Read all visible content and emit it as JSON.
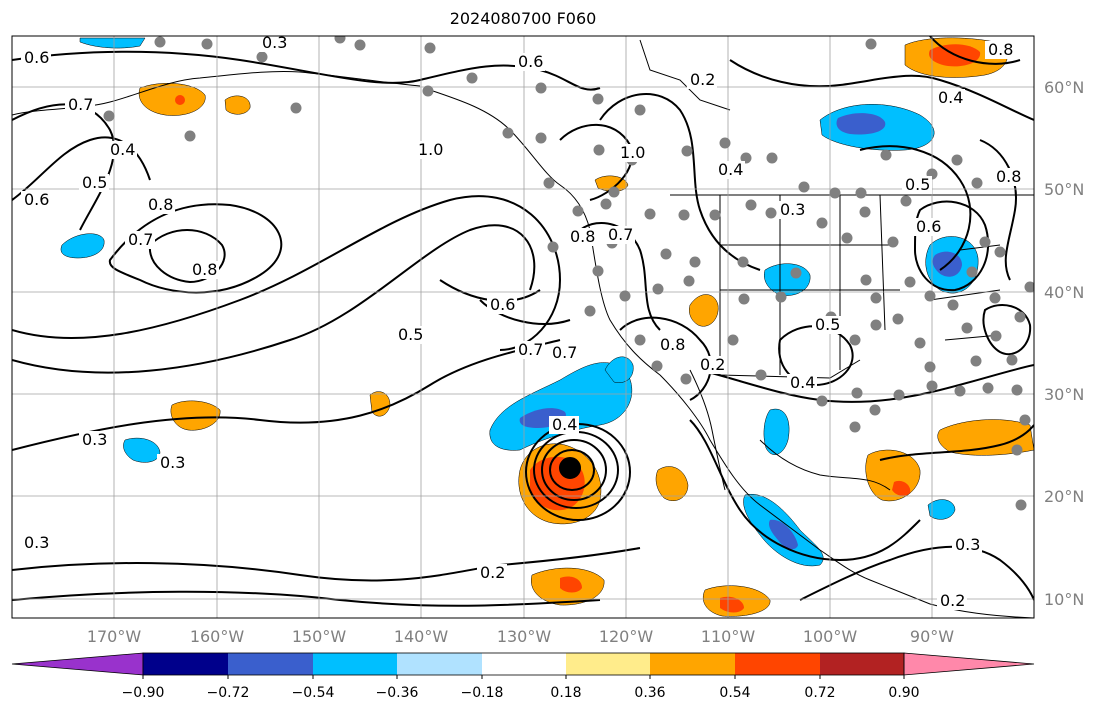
{
  "title": "2024080700 F060",
  "map": {
    "lon_ticks": [
      "170°W",
      "160°W",
      "150°W",
      "140°W",
      "130°W",
      "120°W",
      "110°W",
      "100°W",
      "90°W"
    ],
    "lat_ticks": [
      "60°N",
      "50°N",
      "40°N",
      "30°N",
      "20°N",
      "10°N"
    ],
    "contour_labels": [
      "0.6",
      "0.3",
      "0.6",
      "0.7",
      "0.4",
      "0.5",
      "0.6",
      "0.8",
      "0.7",
      "0.8",
      "1.0",
      "0.7",
      "1.0",
      "0.8",
      "0.7",
      "0.6",
      "0.7",
      "0.5",
      "0.3",
      "0.3",
      "0.3",
      "0.2",
      "0.4",
      "0.4",
      "0.2",
      "0.2",
      "0.4",
      "0.5",
      "0.6",
      "0.8",
      "0.3",
      "0.4",
      "0.5",
      "0.8",
      "0.2",
      "0.3",
      "0.8"
    ],
    "colors": {
      "ocean_bg": "#ffffff",
      "grid": "#a0a0a0",
      "contour": "#000000",
      "station_dot": "#808080"
    }
  },
  "colorbar": {
    "tick_labels": [
      "−0.90",
      "−0.72",
      "−0.54",
      "−0.36",
      "−0.18",
      "0.18",
      "0.36",
      "0.54",
      "0.72",
      "0.90"
    ],
    "colors": [
      "#9932cc",
      "#00008b",
      "#3a5fcd",
      "#00bfff",
      "#b0e2ff",
      "#ffffff",
      "#ffec8b",
      "#ffa500",
      "#ff4500",
      "#b22222",
      "#ff88aa"
    ]
  }
}
